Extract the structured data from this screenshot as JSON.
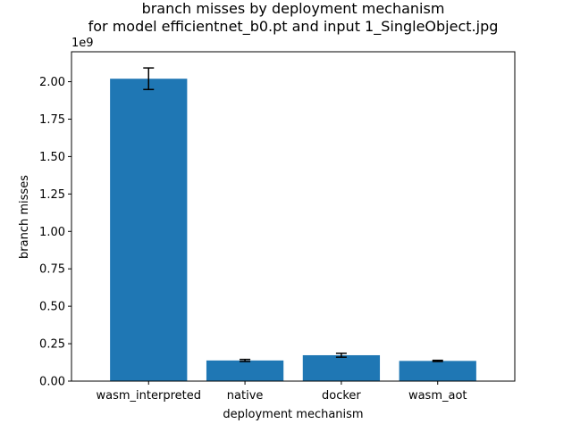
{
  "chart_data": {
    "type": "bar",
    "title_line1": "branch misses by deployment mechanism",
    "title_line2": "for model efficientnet_b0.pt and input 1_SingleObject.jpg",
    "xlabel": "deployment mechanism",
    "ylabel": "branch misses",
    "offset_text": "1e9",
    "categories": [
      "wasm_interpreted",
      "native",
      "docker",
      "wasm_aot"
    ],
    "values": [
      2.02,
      0.138,
      0.173,
      0.135
    ],
    "errors": [
      0.072,
      0.007,
      0.013,
      0.004
    ],
    "ylim": [
      0,
      2.2
    ],
    "yticks": [
      0,
      0.25,
      0.5,
      0.75,
      1.0,
      1.25,
      1.5,
      1.75,
      2.0
    ],
    "ytick_labels": [
      "0.00",
      "0.25",
      "0.50",
      "0.75",
      "1.00",
      "1.25",
      "1.50",
      "1.75",
      "2.00"
    ],
    "bar_color": "#1f77b4",
    "error_color": "#000000",
    "grid": false,
    "legend": "none"
  }
}
